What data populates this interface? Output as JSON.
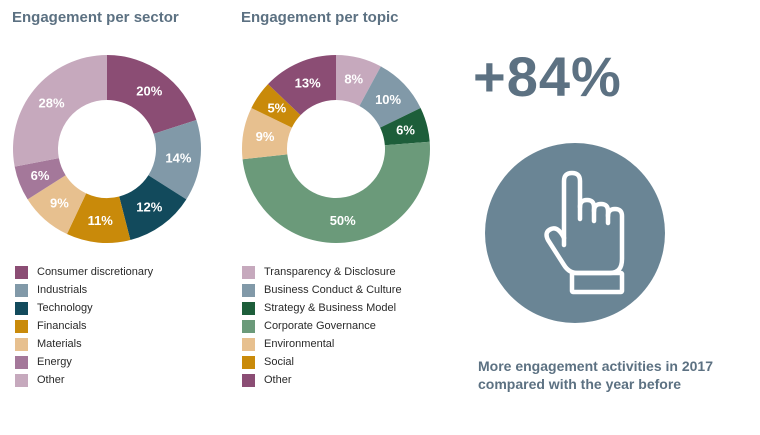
{
  "chart_data": [
    {
      "type": "pie",
      "title": "Engagement per sector",
      "categories": [
        "Consumer discretionary",
        "Industrials",
        "Technology",
        "Financials",
        "Materials",
        "Energy",
        "Other"
      ],
      "values": [
        20,
        14,
        12,
        11,
        9,
        6,
        28
      ],
      "labels": [
        "20%",
        "14%",
        "12%",
        "11%",
        "9%",
        "6%",
        "28%"
      ],
      "colors": [
        "#8b4d74",
        "#8199a8",
        "#124a5c",
        "#c98a0a",
        "#e7c08f",
        "#a4789a",
        "#c6a9bd"
      ],
      "label_colors": [
        "#ffffff",
        "#ffffff",
        "#ffffff",
        "#ffffff",
        "#ffffff",
        "#ffffff",
        "#ffffff"
      ],
      "legend": "bottom"
    },
    {
      "type": "pie",
      "title": "Engagement per topic",
      "categories": [
        "Transparency & Disclosure",
        "Business Conduct & Culture",
        "Strategy & Business Model",
        "Corporate Governance",
        "Environmental",
        "Social",
        "Other"
      ],
      "values": [
        8,
        10,
        6,
        50,
        9,
        5,
        13
      ],
      "labels": [
        "8%",
        "10%",
        "6%",
        "50%",
        "9%",
        "5%",
        "13%"
      ],
      "colors": [
        "#c6a9bd",
        "#8199a8",
        "#1d5e3a",
        "#6b9a7a",
        "#e7c08f",
        "#c98a0a",
        "#8b4d74"
      ],
      "label_colors": [
        "#ffffff",
        "#ffffff",
        "#ffffff",
        "#ffffff",
        "#ffffff",
        "#ffffff",
        "#ffffff"
      ],
      "legend": "bottom"
    }
  ],
  "stat": {
    "value": "+84%",
    "caption_line1": "More engagement activities in 2017",
    "caption_line2": "compared with the year before",
    "circle_color": "#6a8595",
    "icon": "pointing-hand-icon"
  }
}
